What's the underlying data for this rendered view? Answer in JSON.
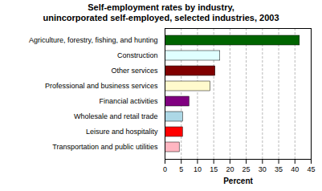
{
  "chart_data": {
    "type": "bar",
    "orientation": "horizontal",
    "title": "Self-employment rates by industry,",
    "subtitle": "unincorporated self-employed, selected industries, 2003",
    "categories": [
      "Transportation and public utilities",
      "Leisure and hospitality",
      "Wholesale and retail trade",
      "Financial activities",
      "Professional and business services",
      "Other services",
      "Construction",
      "Agriculture, forestry, fishing, and hunting"
    ],
    "values": [
      4.5,
      5.5,
      5.5,
      7.5,
      14.0,
      15.5,
      17.0,
      41.5
    ],
    "colors": [
      "#FFB6C1",
      "#FF0000",
      "#ADD8E6",
      "#800080",
      "#FFFACD",
      "#800000",
      "#E0FFFF",
      "#006400"
    ],
    "xlabel": "Percent",
    "xlim": [
      0,
      45
    ],
    "xticks": [
      0,
      5,
      10,
      15,
      20,
      25,
      30,
      35,
      40,
      45
    ],
    "grid": true
  }
}
